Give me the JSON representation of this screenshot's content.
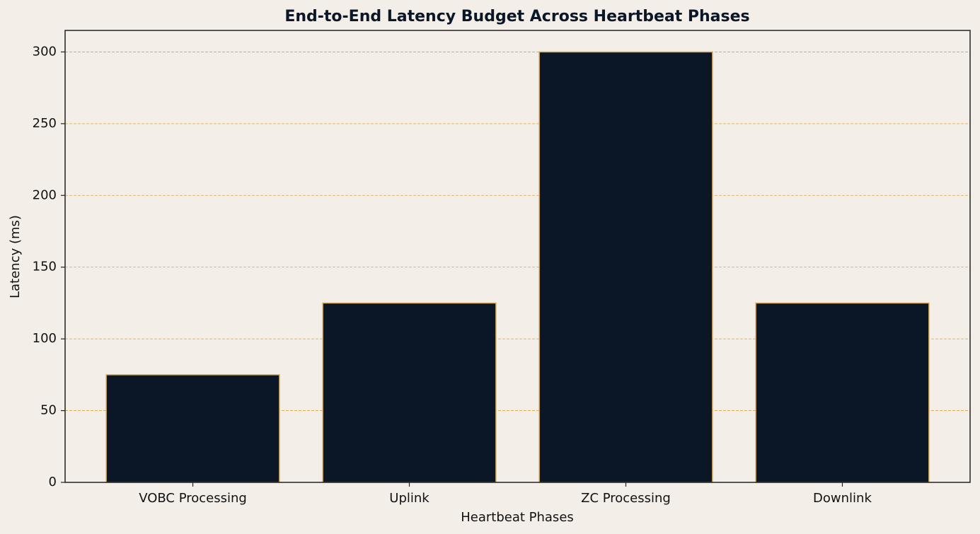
{
  "chart_data": {
    "type": "bar",
    "title": "End-to-End Latency Budget Across Heartbeat Phases",
    "x_label": "Heartbeat Phases",
    "y_label": "Latency (ms)",
    "categories": [
      "VOBC Processing",
      "Uplink",
      "ZC Processing",
      "Downlink"
    ],
    "values": [
      75,
      125,
      300,
      125
    ],
    "color": "#0b1626",
    "edge_color": "#d9ad5e",
    "ylim": [
      0,
      315
    ],
    "yticks": [
      0,
      50,
      100,
      150,
      200,
      250,
      300
    ],
    "grid": true
  }
}
